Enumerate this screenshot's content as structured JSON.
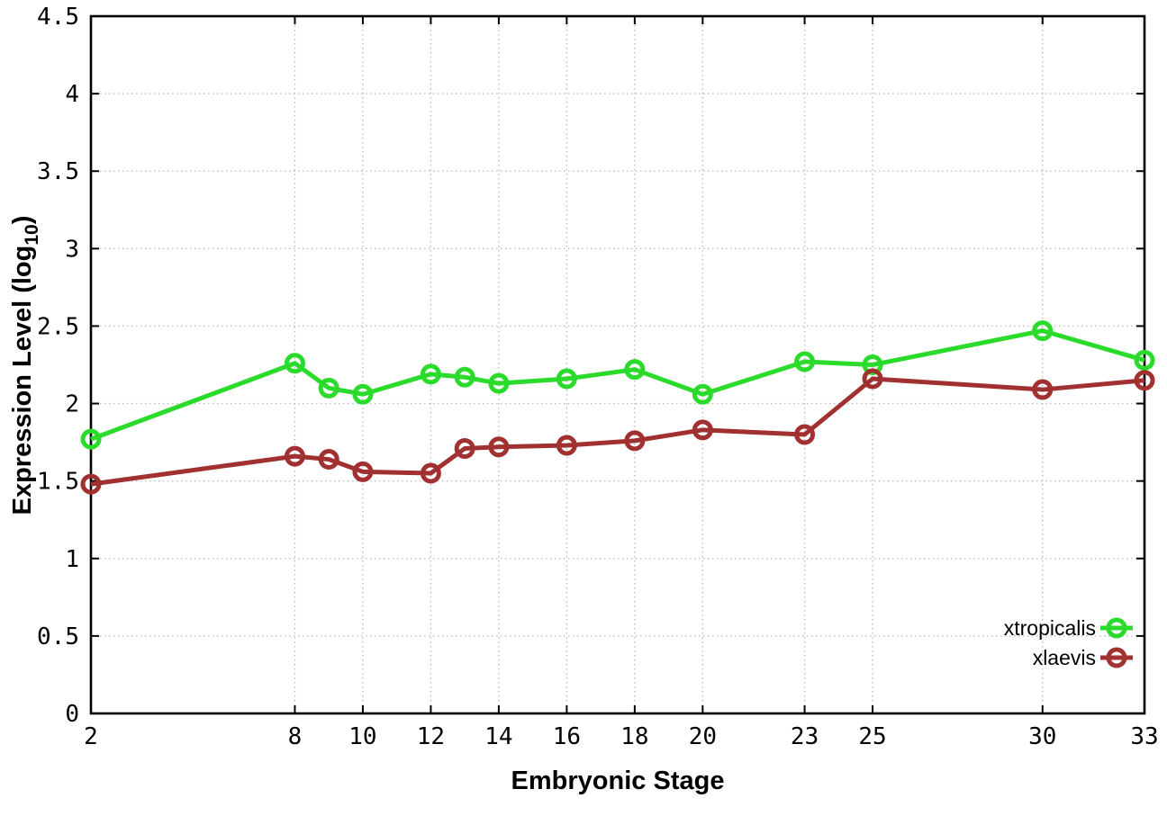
{
  "chart_data": {
    "type": "line",
    "title": "",
    "xlabel": "Embryonic Stage",
    "ylabel": {
      "prefix": "Expression Level (log",
      "sub": "10",
      "suffix": ")"
    },
    "x": [
      2,
      8,
      9,
      10,
      12,
      13,
      14,
      16,
      18,
      20,
      23,
      25,
      30,
      33
    ],
    "series": [
      {
        "name": "xtropicalis",
        "color": "#2bdb2b",
        "values": [
          1.77,
          2.26,
          2.1,
          2.06,
          2.19,
          2.17,
          2.13,
          2.16,
          2.22,
          2.06,
          2.27,
          2.25,
          2.47,
          2.28
        ]
      },
      {
        "name": "xlaevis",
        "color": "#a13030",
        "values": [
          1.48,
          1.66,
          1.64,
          1.56,
          1.55,
          1.71,
          1.72,
          1.73,
          1.76,
          1.83,
          1.8,
          2.16,
          2.09,
          2.15
        ]
      }
    ],
    "xlim": [
      2,
      33
    ],
    "ylim": [
      0,
      4.5
    ],
    "x_ticks": [
      2,
      8,
      10,
      12,
      14,
      16,
      18,
      20,
      23,
      25,
      30,
      33
    ],
    "x_tick_labels": [
      "2",
      "8",
      "10",
      "12",
      "14",
      "16",
      "18",
      "20",
      "23",
      "25",
      "30",
      "33"
    ],
    "y_ticks": [
      0,
      0.5,
      1,
      1.5,
      2,
      2.5,
      3,
      3.5,
      4,
      4.5
    ],
    "y_tick_labels": [
      "0",
      "0.5",
      "1",
      "1.5",
      "2",
      "2.5",
      "3",
      "3.5",
      "4",
      "4.5"
    ],
    "grid": true,
    "legend_position": "bottom-right",
    "legend": [
      "xtropicalis",
      "xlaevis"
    ]
  },
  "colors": {
    "background": "#ffffff",
    "frame": "#000000",
    "grid": "#bcbcbc",
    "text": "#000000",
    "series_green": "#2bdb2b",
    "series_darkred": "#a13030"
  }
}
